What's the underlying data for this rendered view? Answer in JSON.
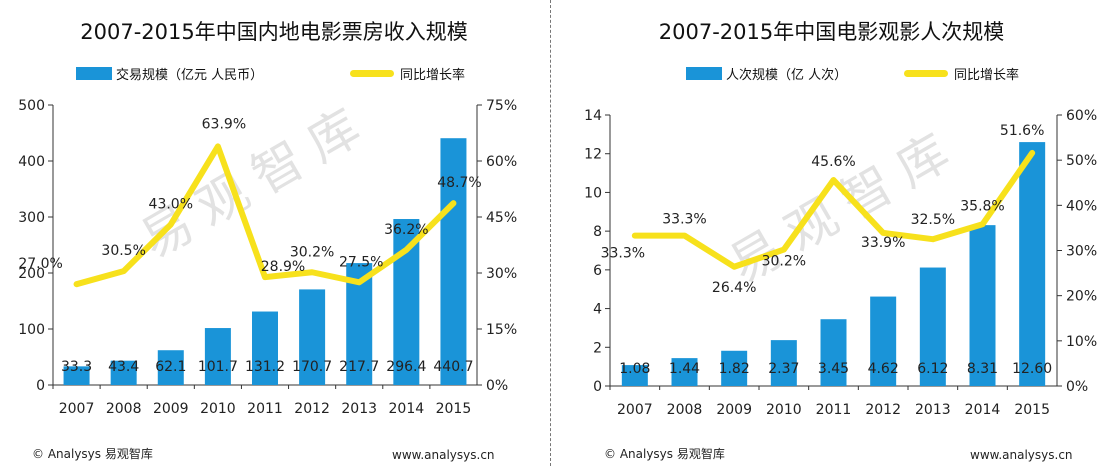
{
  "colors": {
    "bar": "#1a94d8",
    "line": "#f7e11c",
    "watermark": "#e2e2e2",
    "axis": "#333333"
  },
  "watermark": "易观智库",
  "chart_data": [
    {
      "type": "bar",
      "title": "2007-2015年中国内地电影票房收入规模",
      "legend": {
        "bar": "交易规模（亿元 人民币）",
        "line": "同比增长率"
      },
      "categories": [
        "2007",
        "2008",
        "2009",
        "2010",
        "2011",
        "2012",
        "2013",
        "2014",
        "2015"
      ],
      "series": [
        {
          "name": "交易规模（亿元 人民币）",
          "type": "bar",
          "axis": "left",
          "values": [
            33.3,
            43.4,
            62.1,
            101.7,
            131.2,
            170.7,
            217.7,
            296.4,
            440.7
          ],
          "labels": [
            "33.3",
            "43.4",
            "62.1",
            "101.7",
            "131.2",
            "170.7",
            "217.7",
            "296.4",
            "440.7"
          ]
        },
        {
          "name": "同比增长率",
          "type": "line",
          "axis": "right",
          "values": [
            27.0,
            30.5,
            43.0,
            63.9,
            28.9,
            30.2,
            27.5,
            36.2,
            48.7
          ],
          "labels": [
            "27.0%",
            "30.5%",
            "43.0%",
            "63.9%",
            "28.9%",
            "30.2%",
            "27.5%",
            "36.2%",
            "48.7%"
          ]
        }
      ],
      "yleft": {
        "min": 0,
        "max": 500,
        "ticks": [
          0,
          100,
          200,
          300,
          400,
          500
        ],
        "tick_labels": [
          "0",
          "100",
          "200",
          "300",
          "400",
          "500"
        ]
      },
      "yright": {
        "min": 0,
        "max": 75,
        "ticks": [
          0,
          15,
          30,
          45,
          60,
          75
        ],
        "tick_labels": [
          "0%",
          "15%",
          "30%",
          "45%",
          "60%",
          "75%"
        ]
      },
      "footer": {
        "left": "© Analysys 易观智库",
        "right": "www.analysys.cn"
      }
    },
    {
      "type": "bar",
      "title": "2007-2015年中国电影观影人次规模",
      "legend": {
        "bar": "人次规模（亿 人次）",
        "line": "同比增长率"
      },
      "categories": [
        "2007",
        "2008",
        "2009",
        "2010",
        "2011",
        "2012",
        "2013",
        "2014",
        "2015"
      ],
      "series": [
        {
          "name": "人次规模（亿 人次）",
          "type": "bar",
          "axis": "left",
          "values": [
            1.08,
            1.44,
            1.82,
            2.37,
            3.45,
            4.62,
            6.12,
            8.31,
            12.6
          ],
          "labels": [
            "1.08",
            "1.44",
            "1.82",
            "2.37",
            "3.45",
            "4.62",
            "6.12",
            "8.31",
            "12.60"
          ]
        },
        {
          "name": "同比增长率",
          "type": "line",
          "axis": "right",
          "values": [
            33.3,
            33.3,
            26.4,
            30.2,
            45.6,
            33.9,
            32.5,
            35.8,
            51.6
          ],
          "labels": [
            "33.3%",
            "33.3%",
            "26.4%",
            "30.2%",
            "45.6%",
            "33.9%",
            "32.5%",
            "35.8%",
            "51.6%"
          ]
        }
      ],
      "yleft": {
        "min": 0,
        "max": 14,
        "ticks": [
          0,
          2,
          4,
          6,
          8,
          10,
          12,
          14
        ],
        "tick_labels": [
          "0",
          "2",
          "4",
          "6",
          "8",
          "10",
          "12",
          "14"
        ]
      },
      "yright": {
        "min": 0,
        "max": 60,
        "ticks": [
          0,
          10,
          20,
          30,
          40,
          50,
          60
        ],
        "tick_labels": [
          "0%",
          "10%",
          "20%",
          "30%",
          "40%",
          "50%",
          "60%"
        ]
      },
      "footer": {
        "left": "© Analysys 易观智库",
        "right": "www.analysys.cn"
      }
    }
  ]
}
